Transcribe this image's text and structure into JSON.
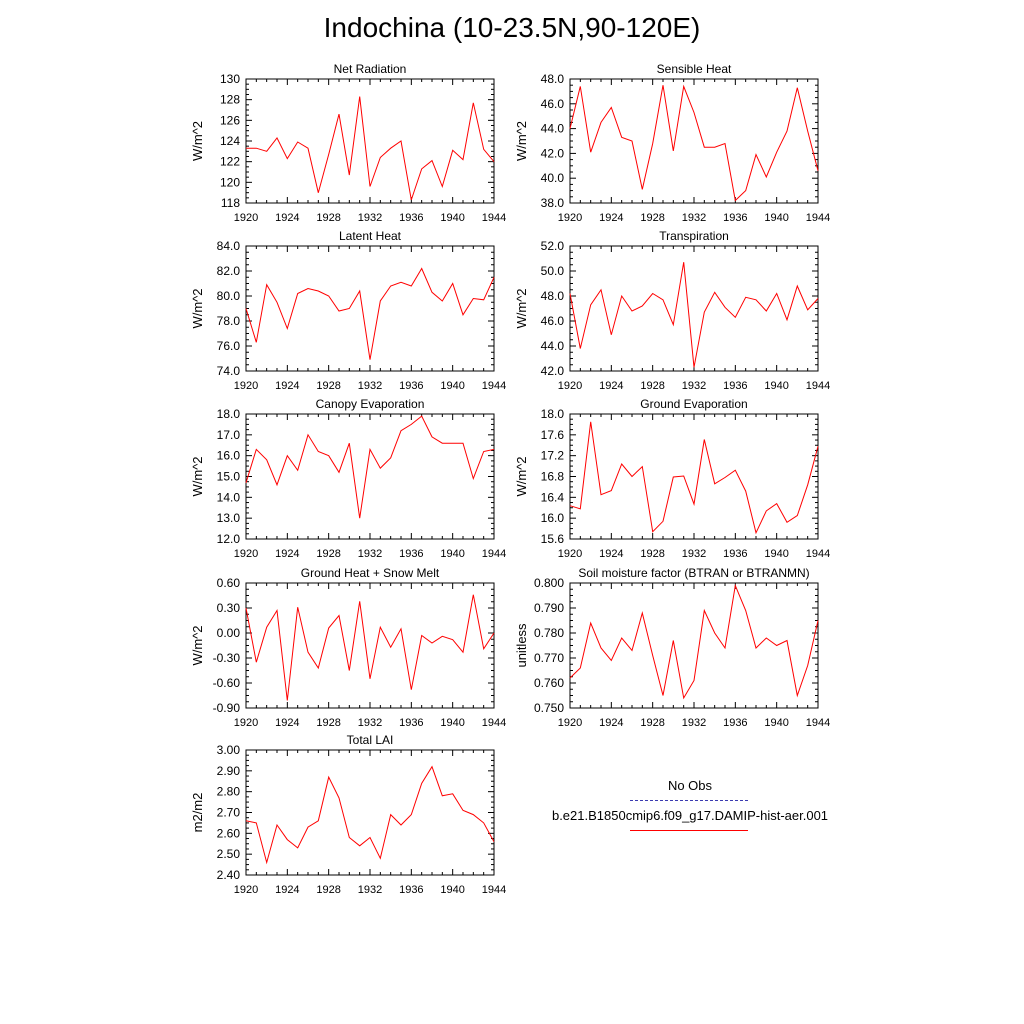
{
  "page": {
    "title": "Indochina (10-23.5N,90-120E)"
  },
  "legend": {
    "items": [
      {
        "label": "No Obs",
        "color": "#3b3bb0",
        "style": "dashed"
      },
      {
        "label": "b.e21.B1850cmip6.f09_g17.DAMIP-hist-aer.001",
        "color": "#ff0000",
        "style": "solid"
      }
    ]
  },
  "chart_data": [
    {
      "type": "line",
      "title": "Net Radiation",
      "ylabel": "W/m^2",
      "xlim": [
        1920,
        1944
      ],
      "ylim": [
        118,
        130
      ],
      "xticks": [
        1920,
        1924,
        1928,
        1932,
        1936,
        1940,
        1944
      ],
      "xtick_labels": [
        "1920",
        "1924",
        "1928",
        "1932",
        "1936",
        "1940",
        "1944"
      ],
      "yticks": [
        118,
        120,
        122,
        124,
        126,
        128,
        130
      ],
      "ytick_labels": [
        "118",
        "120",
        "122",
        "124",
        "126",
        "128",
        "130"
      ],
      "series": [
        {
          "color": "#ff0000",
          "x": [
            1920,
            1921,
            1922,
            1923,
            1924,
            1925,
            1926,
            1927,
            1928,
            1929,
            1930,
            1931,
            1932,
            1933,
            1934,
            1935,
            1936,
            1937,
            1938,
            1939,
            1940,
            1941,
            1942,
            1943,
            1944
          ],
          "y": [
            123.3,
            123.3,
            123.0,
            124.3,
            122.3,
            123.9,
            123.3,
            119.0,
            122.7,
            126.6,
            120.7,
            128.3,
            119.6,
            122.4,
            123.3,
            124.0,
            118.3,
            121.3,
            122.1,
            119.6,
            123.1,
            122.2,
            127.7,
            123.2,
            122.0
          ]
        }
      ]
    },
    {
      "type": "line",
      "title": "Sensible Heat",
      "ylabel": "W/m^2",
      "xlim": [
        1920,
        1944
      ],
      "ylim": [
        38,
        48
      ],
      "xticks": [
        1920,
        1924,
        1928,
        1932,
        1936,
        1940,
        1944
      ],
      "xtick_labels": [
        "1920",
        "1924",
        "1928",
        "1932",
        "1936",
        "1940",
        "1944"
      ],
      "yticks": [
        38,
        40,
        42,
        44,
        46,
        48
      ],
      "ytick_labels": [
        "38.0",
        "40.0",
        "42.0",
        "44.0",
        "46.0",
        "48.0"
      ],
      "series": [
        {
          "color": "#ff0000",
          "x": [
            1920,
            1921,
            1922,
            1923,
            1924,
            1925,
            1926,
            1927,
            1928,
            1929,
            1930,
            1931,
            1932,
            1933,
            1934,
            1935,
            1936,
            1937,
            1938,
            1939,
            1940,
            1941,
            1942,
            1943,
            1944
          ],
          "y": [
            44.0,
            47.4,
            42.1,
            44.5,
            45.7,
            43.3,
            43.0,
            39.1,
            42.8,
            47.5,
            42.2,
            47.4,
            45.3,
            42.5,
            42.5,
            42.8,
            38.2,
            39.0,
            41.9,
            40.1,
            42.1,
            43.8,
            47.3,
            43.8,
            40.6
          ]
        }
      ]
    },
    {
      "type": "line",
      "title": "Latent Heat",
      "ylabel": "W/m^2",
      "xlim": [
        1920,
        1944
      ],
      "ylim": [
        74,
        84
      ],
      "xticks": [
        1920,
        1924,
        1928,
        1932,
        1936,
        1940,
        1944
      ],
      "xtick_labels": [
        "1920",
        "1924",
        "1928",
        "1932",
        "1936",
        "1940",
        "1944"
      ],
      "yticks": [
        74,
        76,
        78,
        80,
        82,
        84
      ],
      "ytick_labels": [
        "74.0",
        "76.0",
        "78.0",
        "80.0",
        "82.0",
        "84.0"
      ],
      "series": [
        {
          "color": "#ff0000",
          "x": [
            1920,
            1921,
            1922,
            1923,
            1924,
            1925,
            1926,
            1927,
            1928,
            1929,
            1930,
            1931,
            1932,
            1933,
            1934,
            1935,
            1936,
            1937,
            1938,
            1939,
            1940,
            1941,
            1942,
            1943,
            1944
          ],
          "y": [
            79.0,
            76.3,
            80.9,
            79.5,
            77.4,
            80.2,
            80.6,
            80.4,
            80.0,
            78.8,
            79.0,
            80.4,
            74.9,
            79.6,
            80.8,
            81.1,
            80.8,
            82.2,
            80.3,
            79.6,
            81.0,
            78.5,
            79.8,
            79.7,
            81.5
          ]
        }
      ]
    },
    {
      "type": "line",
      "title": "Transpiration",
      "ylabel": "W/m^2",
      "xlim": [
        1920,
        1944
      ],
      "ylim": [
        42,
        52
      ],
      "xticks": [
        1920,
        1924,
        1928,
        1932,
        1936,
        1940,
        1944
      ],
      "xtick_labels": [
        "1920",
        "1924",
        "1928",
        "1932",
        "1936",
        "1940",
        "1944"
      ],
      "yticks": [
        42,
        44,
        46,
        48,
        50,
        52
      ],
      "ytick_labels": [
        "42.0",
        "44.0",
        "46.0",
        "48.0",
        "50.0",
        "52.0"
      ],
      "series": [
        {
          "color": "#ff0000",
          "x": [
            1920,
            1921,
            1922,
            1923,
            1924,
            1925,
            1926,
            1927,
            1928,
            1929,
            1930,
            1931,
            1932,
            1933,
            1934,
            1935,
            1936,
            1937,
            1938,
            1939,
            1940,
            1941,
            1942,
            1943,
            1944
          ],
          "y": [
            48.2,
            43.8,
            47.3,
            48.5,
            44.9,
            48.0,
            46.8,
            47.2,
            48.2,
            47.7,
            45.7,
            50.7,
            42.3,
            46.7,
            48.3,
            47.1,
            46.3,
            47.9,
            47.7,
            46.8,
            48.2,
            46.1,
            48.8,
            46.9,
            47.8
          ]
        }
      ]
    },
    {
      "type": "line",
      "title": "Canopy Evaporation",
      "ylabel": "W/m^2",
      "xlim": [
        1920,
        1944
      ],
      "ylim": [
        12,
        18
      ],
      "xticks": [
        1920,
        1924,
        1928,
        1932,
        1936,
        1940,
        1944
      ],
      "xtick_labels": [
        "1920",
        "1924",
        "1928",
        "1932",
        "1936",
        "1940",
        "1944"
      ],
      "yticks": [
        12,
        13,
        14,
        15,
        16,
        17,
        18
      ],
      "ytick_labels": [
        "12.0",
        "13.0",
        "14.0",
        "15.0",
        "16.0",
        "17.0",
        "18.0"
      ],
      "series": [
        {
          "color": "#ff0000",
          "x": [
            1920,
            1921,
            1922,
            1923,
            1924,
            1925,
            1926,
            1927,
            1928,
            1929,
            1930,
            1931,
            1932,
            1933,
            1934,
            1935,
            1936,
            1937,
            1938,
            1939,
            1940,
            1941,
            1942,
            1943,
            1944
          ],
          "y": [
            14.7,
            16.3,
            15.8,
            14.6,
            16.0,
            15.3,
            17.0,
            16.2,
            16.0,
            15.2,
            16.6,
            13.0,
            16.3,
            15.4,
            15.9,
            17.2,
            17.5,
            17.9,
            16.9,
            16.6,
            16.6,
            16.6,
            14.9,
            16.2,
            16.3
          ]
        }
      ]
    },
    {
      "type": "line",
      "title": "Ground Evaporation",
      "ylabel": "W/m^2",
      "xlim": [
        1920,
        1944
      ],
      "ylim": [
        15.6,
        18.0
      ],
      "xticks": [
        1920,
        1924,
        1928,
        1932,
        1936,
        1940,
        1944
      ],
      "xtick_labels": [
        "1920",
        "1924",
        "1928",
        "1932",
        "1936",
        "1940",
        "1944"
      ],
      "yticks": [
        15.6,
        16.0,
        16.4,
        16.8,
        17.2,
        17.6,
        18.0
      ],
      "ytick_labels": [
        "15.6",
        "16.0",
        "16.4",
        "16.8",
        "17.2",
        "17.6",
        "18.0"
      ],
      "series": [
        {
          "color": "#ff0000",
          "x": [
            1920,
            1921,
            1922,
            1923,
            1924,
            1925,
            1926,
            1927,
            1928,
            1929,
            1930,
            1931,
            1932,
            1933,
            1934,
            1935,
            1936,
            1937,
            1938,
            1939,
            1940,
            1941,
            1942,
            1943,
            1944
          ],
          "y": [
            16.24,
            16.18,
            17.85,
            16.45,
            16.53,
            17.04,
            16.8,
            16.99,
            15.74,
            15.94,
            16.79,
            16.81,
            16.27,
            17.51,
            16.66,
            16.78,
            16.92,
            16.52,
            15.72,
            16.14,
            16.28,
            15.92,
            16.05,
            16.64,
            17.38
          ]
        }
      ]
    },
    {
      "type": "line",
      "title": "Ground Heat + Snow Melt",
      "ylabel": "W/m^2",
      "xlim": [
        1920,
        1944
      ],
      "ylim": [
        -0.9,
        0.6
      ],
      "xticks": [
        1920,
        1924,
        1928,
        1932,
        1936,
        1940,
        1944
      ],
      "xtick_labels": [
        "1920",
        "1924",
        "1928",
        "1932",
        "1936",
        "1940",
        "1944"
      ],
      "yticks": [
        -0.9,
        -0.6,
        -0.3,
        0.0,
        0.3,
        0.6
      ],
      "ytick_labels": [
        "-0.90",
        "-0.60",
        "-0.30",
        "0.00",
        "0.30",
        "0.60"
      ],
      "series": [
        {
          "color": "#ff0000",
          "x": [
            1920,
            1921,
            1922,
            1923,
            1924,
            1925,
            1926,
            1927,
            1928,
            1929,
            1930,
            1931,
            1932,
            1933,
            1934,
            1935,
            1936,
            1937,
            1938,
            1939,
            1940,
            1941,
            1942,
            1943,
            1944
          ],
          "y": [
            0.3,
            -0.35,
            0.07,
            0.27,
            -0.81,
            0.31,
            -0.23,
            -0.42,
            0.06,
            0.21,
            -0.45,
            0.38,
            -0.55,
            0.07,
            -0.17,
            0.05,
            -0.68,
            -0.03,
            -0.12,
            -0.04,
            -0.08,
            -0.23,
            0.46,
            -0.19,
            0.0
          ]
        }
      ]
    },
    {
      "type": "line",
      "title": "Soil moisture factor (BTRAN or BTRANMN)",
      "ylabel": "unitless",
      "xlim": [
        1920,
        1944
      ],
      "ylim": [
        0.75,
        0.8
      ],
      "xticks": [
        1920,
        1924,
        1928,
        1932,
        1936,
        1940,
        1944
      ],
      "xtick_labels": [
        "1920",
        "1924",
        "1928",
        "1932",
        "1936",
        "1940",
        "1944"
      ],
      "yticks": [
        0.75,
        0.76,
        0.77,
        0.78,
        0.79,
        0.8
      ],
      "ytick_labels": [
        "0.750",
        "0.760",
        "0.770",
        "0.780",
        "0.790",
        "0.800"
      ],
      "series": [
        {
          "color": "#ff0000",
          "x": [
            1920,
            1921,
            1922,
            1923,
            1924,
            1925,
            1926,
            1927,
            1928,
            1929,
            1930,
            1931,
            1932,
            1933,
            1934,
            1935,
            1936,
            1937,
            1938,
            1939,
            1940,
            1941,
            1942,
            1943,
            1944
          ],
          "y": [
            0.762,
            0.766,
            0.784,
            0.774,
            0.769,
            0.778,
            0.773,
            0.788,
            0.771,
            0.755,
            0.777,
            0.754,
            0.761,
            0.789,
            0.78,
            0.774,
            0.799,
            0.789,
            0.774,
            0.778,
            0.775,
            0.777,
            0.755,
            0.767,
            0.785
          ]
        }
      ]
    },
    {
      "type": "line",
      "title": "Total LAI",
      "ylabel": "m2/m2",
      "xlim": [
        1920,
        1944
      ],
      "ylim": [
        2.4,
        3.0
      ],
      "xticks": [
        1920,
        1924,
        1928,
        1932,
        1936,
        1940,
        1944
      ],
      "xtick_labels": [
        "1920",
        "1924",
        "1928",
        "1932",
        "1936",
        "1940",
        "1944"
      ],
      "yticks": [
        2.4,
        2.5,
        2.6,
        2.7,
        2.8,
        2.9,
        3.0
      ],
      "ytick_labels": [
        "2.40",
        "2.50",
        "2.60",
        "2.70",
        "2.80",
        "2.90",
        "3.00"
      ],
      "series": [
        {
          "color": "#ff0000",
          "x": [
            1920,
            1921,
            1922,
            1923,
            1924,
            1925,
            1926,
            1927,
            1928,
            1929,
            1930,
            1931,
            1932,
            1933,
            1934,
            1935,
            1936,
            1937,
            1938,
            1939,
            1940,
            1941,
            1942,
            1943,
            1944
          ],
          "y": [
            2.66,
            2.65,
            2.46,
            2.64,
            2.57,
            2.53,
            2.63,
            2.66,
            2.87,
            2.77,
            2.58,
            2.54,
            2.58,
            2.48,
            2.69,
            2.64,
            2.69,
            2.84,
            2.92,
            2.78,
            2.79,
            2.71,
            2.69,
            2.65,
            2.56
          ]
        }
      ]
    }
  ]
}
